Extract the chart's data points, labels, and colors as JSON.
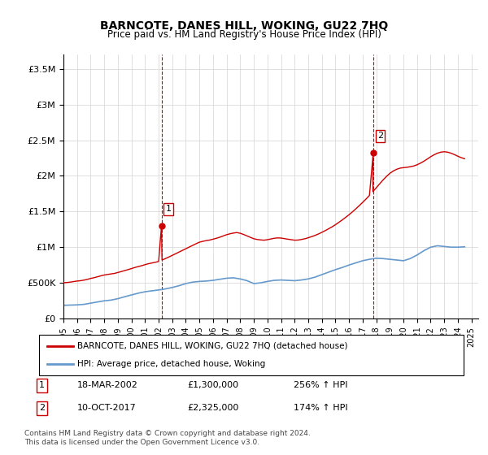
{
  "title": "BARNCOTE, DANES HILL, WOKING, GU22 7HQ",
  "subtitle": "Price paid vs. HM Land Registry's House Price Index (HPI)",
  "ylabel_ticks": [
    "£0",
    "£500K",
    "£1M",
    "£1.5M",
    "£2M",
    "£2.5M",
    "£3M",
    "£3.5M"
  ],
  "ylabel_values": [
    0,
    500000,
    1000000,
    1500000,
    2000000,
    2500000,
    3000000,
    3500000
  ],
  "ylim": [
    0,
    3700000
  ],
  "xlim_start": 1995.0,
  "xlim_end": 2025.5,
  "sale1_date": "18-MAR-2002",
  "sale1_price": 1300000,
  "sale1_hpi_pct": "256% ↑ HPI",
  "sale2_date": "10-OCT-2017",
  "sale2_price": 2325000,
  "sale2_hpi_pct": "174% ↑ HPI",
  "legend_label1": "BARNCOTE, DANES HILL, WOKING, GU22 7HQ (detached house)",
  "legend_label2": "HPI: Average price, detached house, Woking",
  "footnote": "Contains HM Land Registry data © Crown copyright and database right 2024.\nThis data is licensed under the Open Government Licence v3.0.",
  "line1_color": "#cc0000",
  "line2_color": "#6699cc",
  "vline_color": "#cc0000",
  "marker1_x": 2002.21,
  "marker1_y": 1300000,
  "marker2_x": 2017.78,
  "marker2_y": 2325000,
  "hpi_x": [
    1995.0,
    1995.5,
    1996.0,
    1996.5,
    1997.0,
    1997.5,
    1998.0,
    1998.5,
    1999.0,
    1999.5,
    2000.0,
    2000.5,
    2001.0,
    2001.5,
    2002.0,
    2002.5,
    2003.0,
    2003.5,
    2004.0,
    2004.5,
    2005.0,
    2005.5,
    2006.0,
    2006.5,
    2007.0,
    2007.5,
    2008.0,
    2008.5,
    2009.0,
    2009.5,
    2010.0,
    2010.5,
    2011.0,
    2011.5,
    2012.0,
    2012.5,
    2013.0,
    2013.5,
    2014.0,
    2014.5,
    2015.0,
    2015.5,
    2016.0,
    2016.5,
    2017.0,
    2017.5,
    2018.0,
    2018.5,
    2019.0,
    2019.5,
    2020.0,
    2020.5,
    2021.0,
    2021.5,
    2022.0,
    2022.5,
    2023.0,
    2023.5,
    2024.0,
    2024.5
  ],
  "hpi_y": [
    185000,
    188000,
    191000,
    198000,
    215000,
    232000,
    248000,
    258000,
    278000,
    305000,
    330000,
    355000,
    375000,
    388000,
    400000,
    415000,
    435000,
    460000,
    490000,
    510000,
    520000,
    525000,
    535000,
    550000,
    565000,
    570000,
    555000,
    530000,
    490000,
    500000,
    520000,
    535000,
    540000,
    535000,
    530000,
    540000,
    555000,
    580000,
    615000,
    650000,
    685000,
    715000,
    750000,
    780000,
    810000,
    830000,
    845000,
    840000,
    830000,
    820000,
    810000,
    840000,
    890000,
    950000,
    1000000,
    1020000,
    1010000,
    1000000,
    1000000,
    1005000
  ],
  "prop_x": [
    1995.0,
    1995.25,
    1995.5,
    1995.75,
    1996.0,
    1996.25,
    1996.5,
    1996.75,
    1997.0,
    1997.25,
    1997.5,
    1997.75,
    1998.0,
    1998.25,
    1998.5,
    1998.75,
    1999.0,
    1999.25,
    1999.5,
    1999.75,
    2000.0,
    2000.25,
    2000.5,
    2000.75,
    2001.0,
    2001.25,
    2001.5,
    2001.75,
    2002.0,
    2002.21,
    2002.25,
    2002.5,
    2002.75,
    2003.0,
    2003.25,
    2003.5,
    2003.75,
    2004.0,
    2004.25,
    2004.5,
    2004.75,
    2005.0,
    2005.25,
    2005.5,
    2005.75,
    2006.0,
    2006.25,
    2006.5,
    2006.75,
    2007.0,
    2007.25,
    2007.5,
    2007.75,
    2008.0,
    2008.25,
    2008.5,
    2008.75,
    2009.0,
    2009.25,
    2009.5,
    2009.75,
    2010.0,
    2010.25,
    2010.5,
    2010.75,
    2011.0,
    2011.25,
    2011.5,
    2011.75,
    2012.0,
    2012.25,
    2012.5,
    2012.75,
    2013.0,
    2013.25,
    2013.5,
    2013.75,
    2014.0,
    2014.25,
    2014.5,
    2014.75,
    2015.0,
    2015.25,
    2015.5,
    2015.75,
    2016.0,
    2016.25,
    2016.5,
    2016.75,
    2017.0,
    2017.25,
    2017.5,
    2017.78,
    2017.75,
    2018.0,
    2018.25,
    2018.5,
    2018.75,
    2019.0,
    2019.25,
    2019.5,
    2019.75,
    2020.0,
    2020.25,
    2020.5,
    2020.75,
    2021.0,
    2021.25,
    2021.5,
    2021.75,
    2022.0,
    2022.25,
    2022.5,
    2022.75,
    2023.0,
    2023.25,
    2023.5,
    2023.75,
    2024.0,
    2024.25,
    2024.5
  ],
  "prop_y": [
    500000,
    505000,
    510000,
    518000,
    525000,
    530000,
    538000,
    548000,
    562000,
    572000,
    585000,
    598000,
    610000,
    618000,
    625000,
    632000,
    645000,
    658000,
    672000,
    685000,
    700000,
    715000,
    728000,
    740000,
    755000,
    768000,
    778000,
    788000,
    800000,
    1300000,
    820000,
    840000,
    862000,
    885000,
    908000,
    932000,
    955000,
    978000,
    1002000,
    1025000,
    1048000,
    1070000,
    1082000,
    1092000,
    1100000,
    1112000,
    1125000,
    1140000,
    1158000,
    1175000,
    1188000,
    1198000,
    1205000,
    1195000,
    1178000,
    1158000,
    1138000,
    1118000,
    1108000,
    1102000,
    1098000,
    1105000,
    1115000,
    1125000,
    1130000,
    1128000,
    1120000,
    1112000,
    1105000,
    1098000,
    1100000,
    1108000,
    1118000,
    1132000,
    1148000,
    1165000,
    1185000,
    1208000,
    1232000,
    1258000,
    1285000,
    1315000,
    1348000,
    1382000,
    1418000,
    1455000,
    1495000,
    1538000,
    1582000,
    1628000,
    1675000,
    1725000,
    2325000,
    1778000,
    1832000,
    1888000,
    1942000,
    1992000,
    2035000,
    2068000,
    2092000,
    2108000,
    2115000,
    2120000,
    2128000,
    2138000,
    2155000,
    2178000,
    2205000,
    2235000,
    2268000,
    2295000,
    2318000,
    2332000,
    2338000,
    2332000,
    2318000,
    2298000,
    2275000,
    2255000,
    2240000
  ]
}
